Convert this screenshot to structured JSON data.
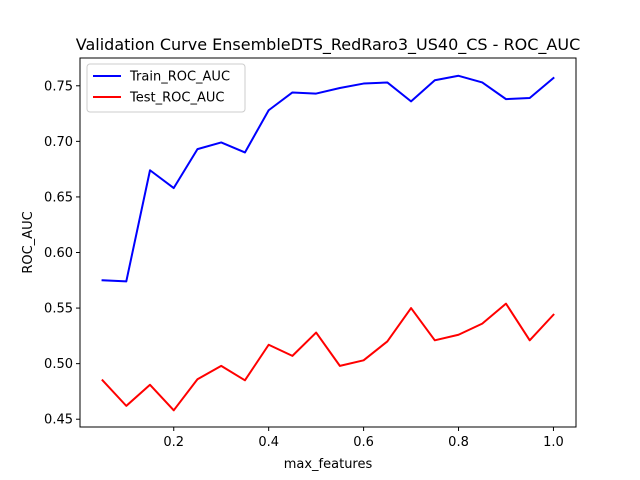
{
  "chart_data": {
    "type": "line",
    "title": "Validation Curve EnsembleDTS_RedRaro3_US40_CS - ROC_AUC",
    "xlabel": "max_features",
    "ylabel": "ROC_AUC",
    "x": [
      0.05,
      0.1,
      0.15,
      0.2,
      0.25,
      0.3,
      0.35,
      0.4,
      0.45,
      0.5,
      0.55,
      0.6,
      0.65,
      0.7,
      0.75,
      0.8,
      0.85,
      0.9,
      0.95,
      1.0
    ],
    "xlim": [
      0.0025,
      1.0475
    ],
    "ylim": [
      0.443,
      0.775
    ],
    "xticks": [
      0.2,
      0.4,
      0.6,
      0.8,
      1.0
    ],
    "xtick_labels": [
      "0.2",
      "0.4",
      "0.6",
      "0.8",
      "1.0"
    ],
    "yticks": [
      0.45,
      0.5,
      0.55,
      0.6,
      0.65,
      0.7,
      0.75
    ],
    "ytick_labels": [
      "0.45",
      "0.50",
      "0.55",
      "0.60",
      "0.65",
      "0.70",
      "0.75"
    ],
    "grid": false,
    "legend_position": "top-left",
    "series": [
      {
        "name": "Train_ROC_AUC",
        "color": "#0000ff",
        "values": [
          0.575,
          0.574,
          0.674,
          0.658,
          0.693,
          0.699,
          0.69,
          0.728,
          0.744,
          0.743,
          0.748,
          0.752,
          0.753,
          0.736,
          0.755,
          0.759,
          0.753,
          0.738,
          0.739,
          0.757
        ]
      },
      {
        "name": "Test_ROC_AUC",
        "color": "#ff0000",
        "values": [
          0.485,
          0.462,
          0.481,
          0.458,
          0.486,
          0.498,
          0.485,
          0.517,
          0.507,
          0.528,
          0.498,
          0.503,
          0.52,
          0.55,
          0.521,
          0.526,
          0.536,
          0.554,
          0.521,
          0.544
        ]
      }
    ]
  }
}
